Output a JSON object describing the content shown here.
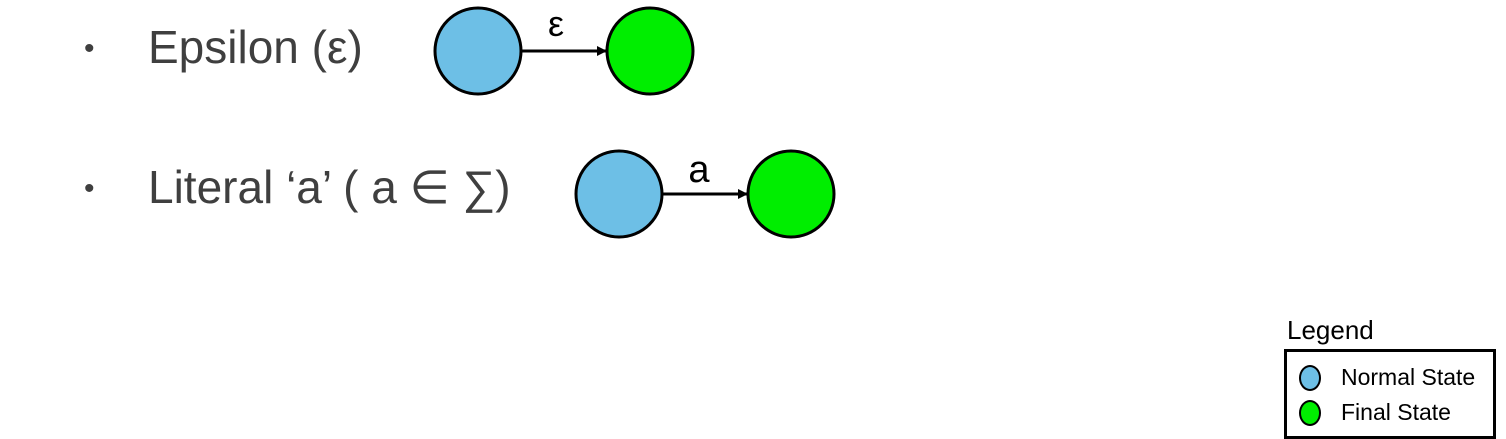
{
  "rows": [
    {
      "bullet": "•",
      "label": "Epsilon (ε)",
      "transition_symbol": "ε"
    },
    {
      "bullet": "•",
      "label": "Literal ‘a’ ( a ∈ ∑)",
      "transition_symbol": "a"
    }
  ],
  "legend": {
    "title": "Legend",
    "items": [
      {
        "label": "Normal State",
        "color": "#6dbfe6"
      },
      {
        "label": "Final State",
        "color": "#00ee00"
      }
    ]
  },
  "colors": {
    "normal_state": "#6dbfe6",
    "final_state": "#00ee00",
    "text": "#3f3f3f",
    "stroke": "#000000"
  }
}
